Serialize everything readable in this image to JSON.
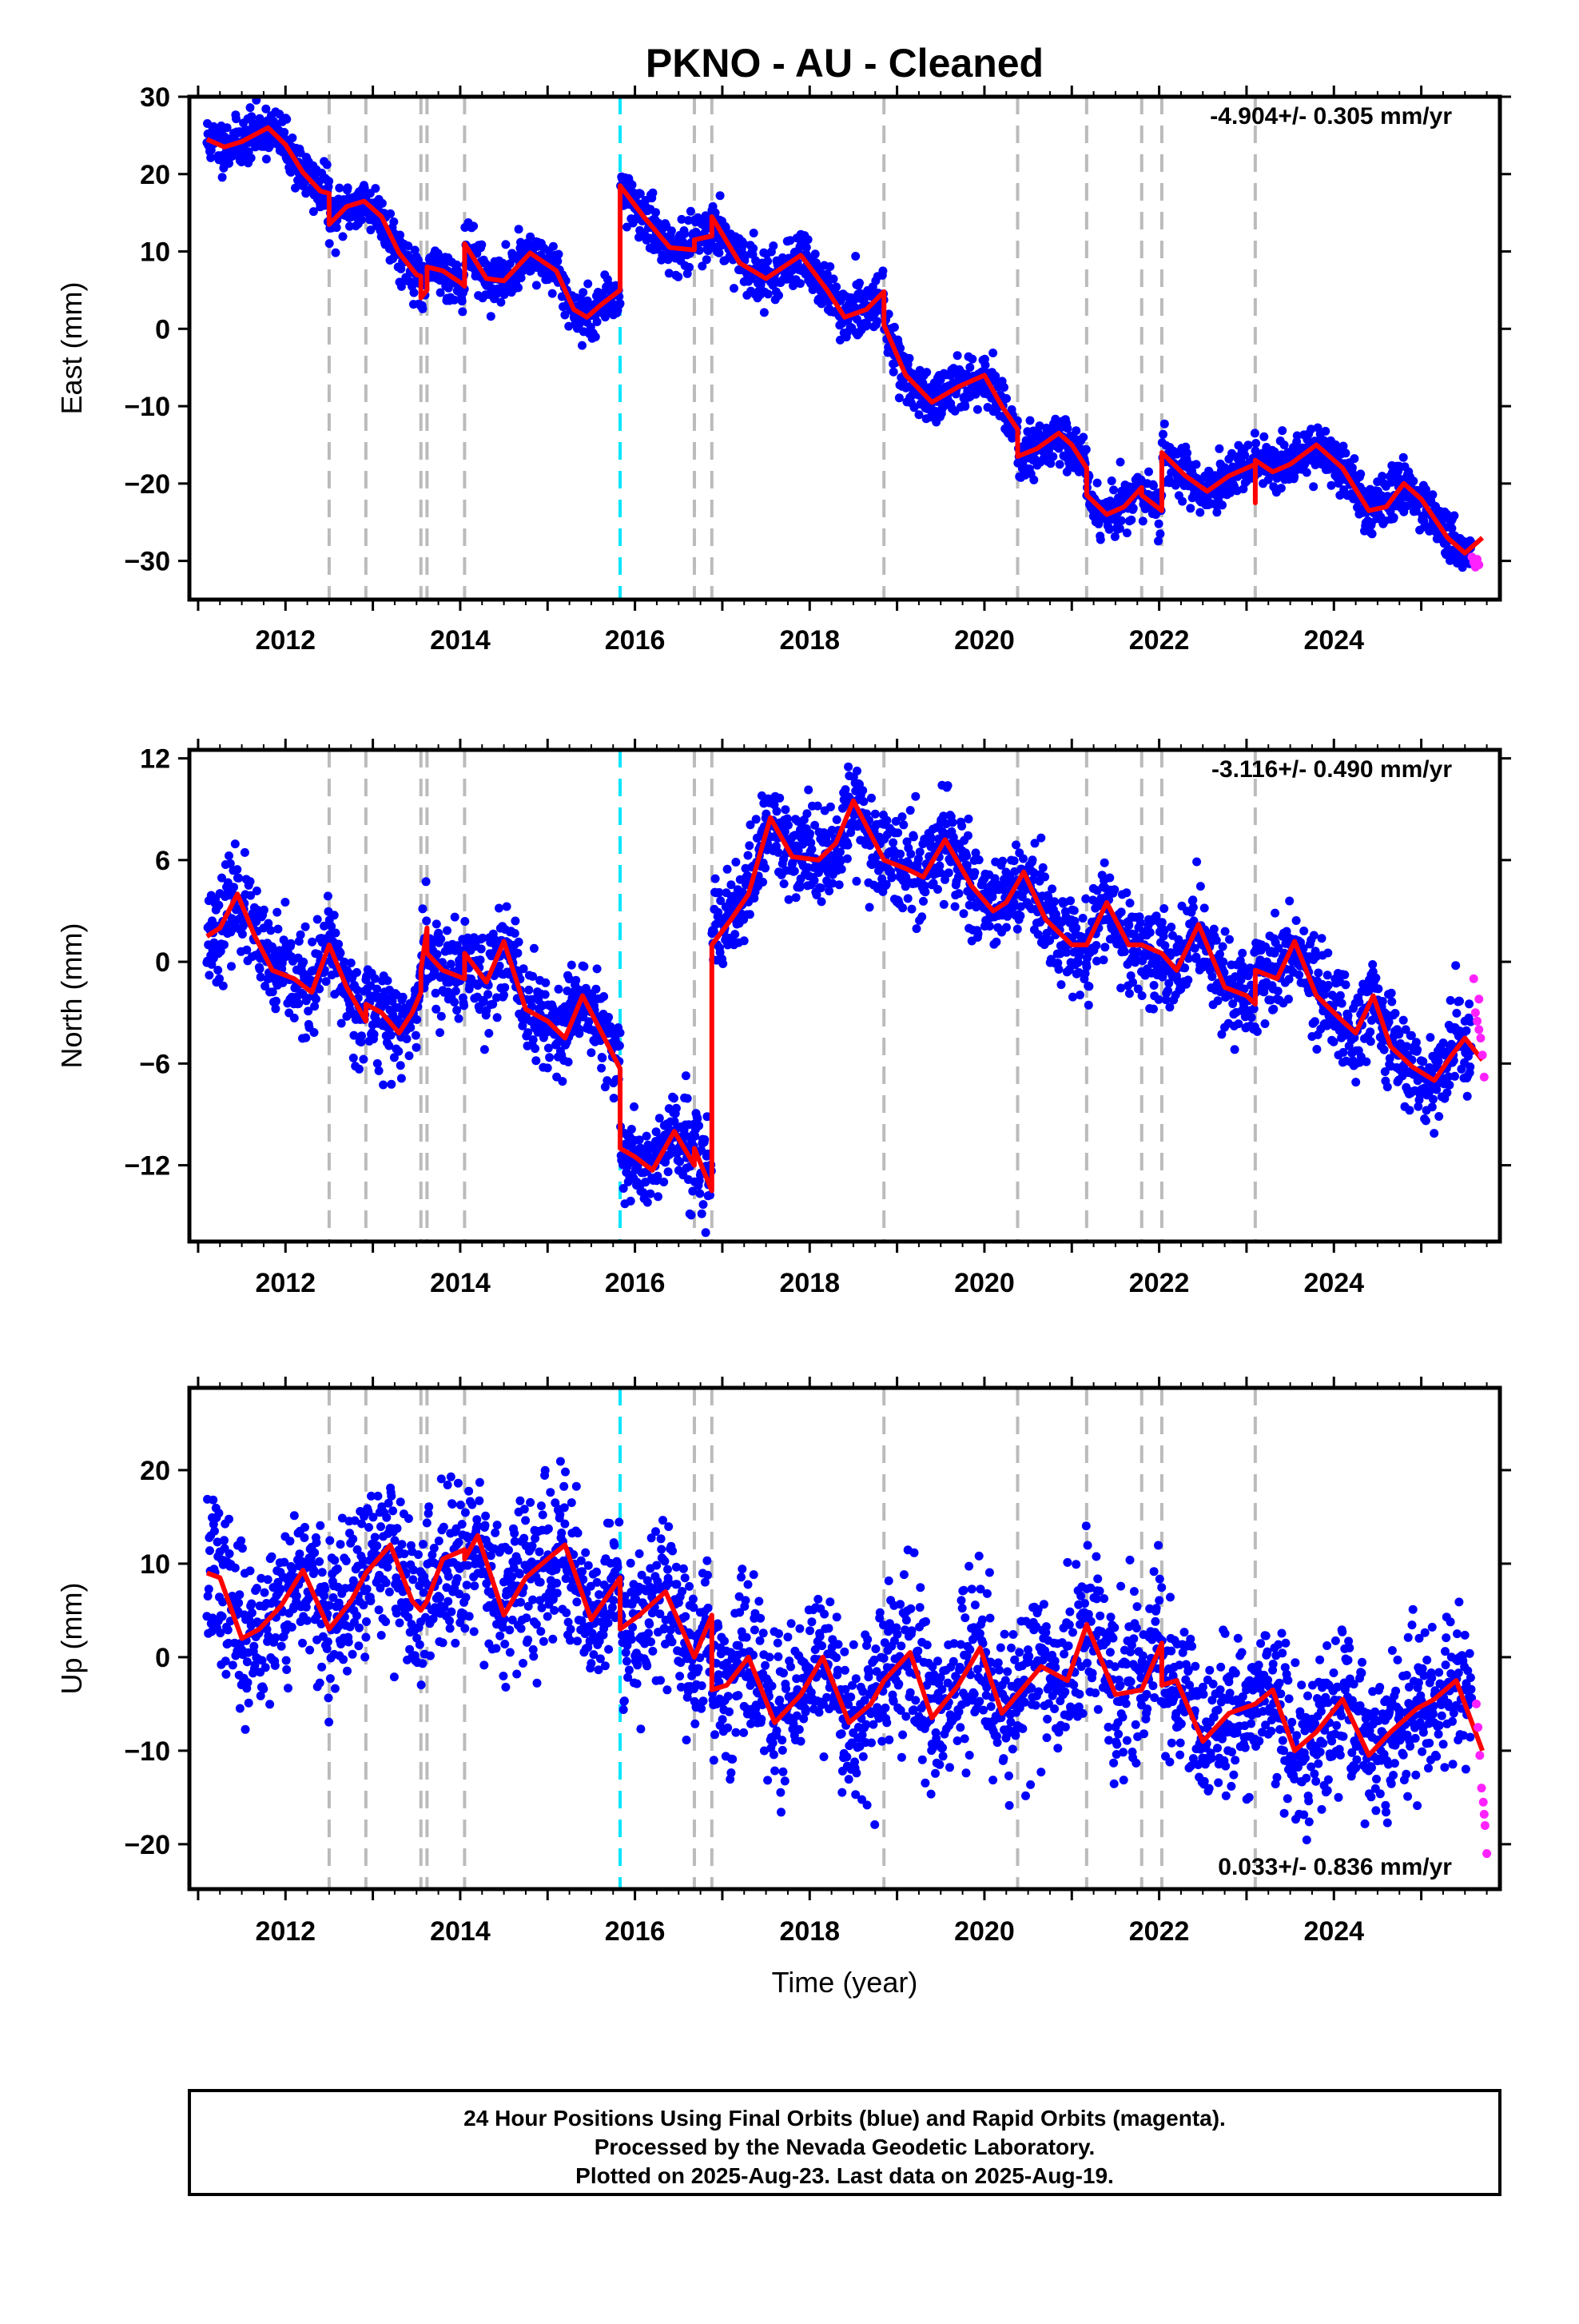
{
  "title": "PKNO  - AU - Cleaned",
  "xlabel": "Time (year)",
  "footer": [
    "24 Hour Positions Using Final Orbits (blue) and Rapid Orbits (magenta).",
    "Processed by the Nevada Geodetic Laboratory.",
    "Plotted on 2025-Aug-23. Last data on 2025-Aug-19."
  ],
  "colors": {
    "final_orbits": "#0000ff",
    "rapid_orbits": "#ff22ff",
    "model": "#ff0000",
    "event_lines": "#bbbbbb",
    "highlight_event": "#00e5ff"
  },
  "chart_data": [
    {
      "type": "scatter",
      "panel": "east",
      "ylabel": "East (mm)",
      "rate_label": "-4.904+/- 0.305 mm/yr",
      "xlim": [
        2010.9,
        2025.9
      ],
      "ylim": [
        -35,
        30
      ],
      "yticks": [
        30,
        20,
        10,
        0,
        -10,
        -20,
        -30
      ],
      "xticks": [
        2012,
        2014,
        2016,
        2018,
        2020,
        2022,
        2024
      ],
      "event_lines": [
        2012.5,
        2012.92,
        2013.55,
        2013.62,
        2014.05,
        2016.68,
        2016.88,
        2018.85,
        2020.38,
        2021.17,
        2021.8,
        2022.03,
        2023.1
      ],
      "highlight_event": 2015.83,
      "model_line": [
        [
          2011.1,
          24.5
        ],
        [
          2011.3,
          23.5
        ],
        [
          2011.5,
          24.2
        ],
        [
          2011.8,
          26
        ],
        [
          2012.0,
          23.8
        ],
        [
          2012.2,
          20.2
        ],
        [
          2012.4,
          17.8
        ],
        [
          2012.5,
          17.5
        ],
        [
          2012.5,
          13.5
        ],
        [
          2012.7,
          15.8
        ],
        [
          2012.9,
          16.5
        ],
        [
          2013.1,
          14.5
        ],
        [
          2013.3,
          9.8
        ],
        [
          2013.5,
          7
        ],
        [
          2013.55,
          6.8
        ],
        [
          2013.55,
          4
        ],
        [
          2013.62,
          5
        ],
        [
          2013.62,
          8
        ],
        [
          2013.8,
          7.5
        ],
        [
          2014.0,
          6
        ],
        [
          2014.05,
          5.5
        ],
        [
          2014.05,
          11
        ],
        [
          2014.3,
          6.5
        ],
        [
          2014.5,
          6.2
        ],
        [
          2014.8,
          9.8
        ],
        [
          2015.1,
          7.5
        ],
        [
          2015.3,
          2.5
        ],
        [
          2015.45,
          1.5
        ],
        [
          2015.6,
          3
        ],
        [
          2015.83,
          5
        ],
        [
          2015.83,
          18.5
        ],
        [
          2016.1,
          14.5
        ],
        [
          2016.4,
          10.5
        ],
        [
          2016.68,
          10.2
        ],
        [
          2016.68,
          11.5
        ],
        [
          2016.88,
          12
        ],
        [
          2016.88,
          14.5
        ],
        [
          2017.2,
          8.5
        ],
        [
          2017.5,
          6.5
        ],
        [
          2017.9,
          9.5
        ],
        [
          2018.2,
          5
        ],
        [
          2018.4,
          1.5
        ],
        [
          2018.65,
          2.5
        ],
        [
          2018.85,
          4.8
        ],
        [
          2018.85,
          0.5
        ],
        [
          2019.1,
          -6
        ],
        [
          2019.4,
          -9.5
        ],
        [
          2019.7,
          -7.5
        ],
        [
          2020.0,
          -6
        ],
        [
          2020.2,
          -10
        ],
        [
          2020.38,
          -13
        ],
        [
          2020.38,
          -16.5
        ],
        [
          2020.6,
          -15.5
        ],
        [
          2020.85,
          -13.5
        ],
        [
          2021.0,
          -15
        ],
        [
          2021.17,
          -18
        ],
        [
          2021.17,
          -21.5
        ],
        [
          2021.4,
          -24
        ],
        [
          2021.6,
          -23
        ],
        [
          2021.8,
          -20.5
        ],
        [
          2021.8,
          -21.5
        ],
        [
          2022.03,
          -23.5
        ],
        [
          2022.03,
          -16
        ],
        [
          2022.3,
          -19
        ],
        [
          2022.55,
          -21
        ],
        [
          2022.8,
          -19
        ],
        [
          2023.1,
          -17.5
        ],
        [
          2023.1,
          -22.5
        ],
        [
          2023.1,
          -17
        ],
        [
          2023.3,
          -18.5
        ],
        [
          2023.5,
          -17.5
        ],
        [
          2023.8,
          -15
        ],
        [
          2024.1,
          -18
        ],
        [
          2024.4,
          -23.5
        ],
        [
          2024.6,
          -23
        ],
        [
          2024.8,
          -20
        ],
        [
          2025.0,
          -22
        ],
        [
          2025.3,
          -27
        ],
        [
          2025.5,
          -29
        ],
        [
          2025.7,
          -27
        ]
      ],
      "rapid_points": [
        [
          2025.58,
          -29.5
        ],
        [
          2025.6,
          -30.2
        ],
        [
          2025.62,
          -30.8
        ],
        [
          2025.64,
          -29.8
        ],
        [
          2025.66,
          -30.5
        ]
      ]
    },
    {
      "type": "scatter",
      "panel": "north",
      "ylabel": "North (mm)",
      "rate_label": "-3.116+/- 0.490 mm/yr",
      "xlim": [
        2010.9,
        2025.9
      ],
      "ylim": [
        -16.5,
        12.5
      ],
      "yticks": [
        12,
        6,
        0,
        -6,
        -12
      ],
      "xticks": [
        2012,
        2014,
        2016,
        2018,
        2020,
        2022,
        2024
      ],
      "event_lines": [
        2012.5,
        2012.92,
        2013.55,
        2013.62,
        2014.05,
        2016.68,
        2016.88,
        2018.85,
        2020.38,
        2021.17,
        2021.8,
        2022.03,
        2023.1
      ],
      "highlight_event": 2015.83,
      "model_line": [
        [
          2011.1,
          1.5
        ],
        [
          2011.25,
          2
        ],
        [
          2011.45,
          4
        ],
        [
          2011.65,
          1.5
        ],
        [
          2011.85,
          -0.5
        ],
        [
          2012.1,
          -1
        ],
        [
          2012.3,
          -1.8
        ],
        [
          2012.5,
          1
        ],
        [
          2012.7,
          -1.5
        ],
        [
          2012.92,
          -3.5
        ],
        [
          2012.92,
          -2.5
        ],
        [
          2013.1,
          -3
        ],
        [
          2013.3,
          -4.2
        ],
        [
          2013.45,
          -3
        ],
        [
          2013.55,
          -1.8
        ],
        [
          2013.55,
          -0.5
        ],
        [
          2013.62,
          2
        ],
        [
          2013.62,
          0.5
        ],
        [
          2013.8,
          -0.5
        ],
        [
          2014.05,
          -1
        ],
        [
          2014.05,
          0.5
        ],
        [
          2014.3,
          -1.2
        ],
        [
          2014.5,
          1.2
        ],
        [
          2014.75,
          -2.8
        ],
        [
          2015.0,
          -3.5
        ],
        [
          2015.2,
          -4.5
        ],
        [
          2015.4,
          -2
        ],
        [
          2015.6,
          -4
        ],
        [
          2015.8,
          -6
        ],
        [
          2015.83,
          -6.3
        ],
        [
          2015.83,
          -11
        ],
        [
          2016.0,
          -11.5
        ],
        [
          2016.2,
          -12.3
        ],
        [
          2016.45,
          -10
        ],
        [
          2016.68,
          -12
        ],
        [
          2016.68,
          -11
        ],
        [
          2016.88,
          -13.5
        ],
        [
          2016.88,
          1
        ],
        [
          2017.1,
          2.5
        ],
        [
          2017.3,
          4
        ],
        [
          2017.55,
          8.5
        ],
        [
          2017.8,
          6.2
        ],
        [
          2018.1,
          6
        ],
        [
          2018.3,
          7
        ],
        [
          2018.5,
          9.5
        ],
        [
          2018.85,
          6
        ],
        [
          2019.1,
          5.5
        ],
        [
          2019.3,
          5
        ],
        [
          2019.55,
          7.2
        ],
        [
          2019.85,
          4.5
        ],
        [
          2020.1,
          3
        ],
        [
          2020.25,
          3.5
        ],
        [
          2020.45,
          5.3
        ],
        [
          2020.7,
          2.5
        ],
        [
          2021.0,
          1
        ],
        [
          2021.17,
          1
        ],
        [
          2021.4,
          3.5
        ],
        [
          2021.65,
          1
        ],
        [
          2021.8,
          1
        ],
        [
          2022.03,
          0.5
        ],
        [
          2022.2,
          -0.5
        ],
        [
          2022.45,
          2.2
        ],
        [
          2022.75,
          -1.5
        ],
        [
          2023.0,
          -2
        ],
        [
          2023.1,
          -2.5
        ],
        [
          2023.1,
          -0.5
        ],
        [
          2023.35,
          -1
        ],
        [
          2023.55,
          1.2
        ],
        [
          2023.8,
          -2
        ],
        [
          2024.1,
          -3.5
        ],
        [
          2024.25,
          -4.2
        ],
        [
          2024.45,
          -2
        ],
        [
          2024.65,
          -5
        ],
        [
          2024.9,
          -6.2
        ],
        [
          2025.15,
          -7
        ],
        [
          2025.35,
          -5.5
        ],
        [
          2025.5,
          -4.5
        ],
        [
          2025.7,
          -5.8
        ]
      ],
      "rapid_points": [
        [
          2025.6,
          -1
        ],
        [
          2025.62,
          -3
        ],
        [
          2025.64,
          -3.5
        ],
        [
          2025.66,
          -4
        ],
        [
          2025.68,
          -4.5
        ],
        [
          2025.7,
          -5.5
        ],
        [
          2025.72,
          -6.8
        ],
        [
          2025.66,
          -2.2
        ]
      ]
    },
    {
      "type": "scatter",
      "panel": "up",
      "ylabel": "Up (mm)",
      "rate_label": "0.033+/- 0.836 mm/yr",
      "xlim": [
        2010.9,
        2025.9
      ],
      "ylim": [
        -24.8,
        28.8
      ],
      "yticks": [
        20,
        10,
        0,
        -10,
        -20
      ],
      "xticks": [
        2012,
        2014,
        2016,
        2018,
        2020,
        2022,
        2024
      ],
      "event_lines": [
        2012.5,
        2012.92,
        2013.55,
        2013.62,
        2014.05,
        2016.68,
        2016.88,
        2018.85,
        2020.38,
        2021.17,
        2021.8,
        2022.03,
        2023.1
      ],
      "highlight_event": 2015.83,
      "model_line": [
        [
          2011.1,
          9
        ],
        [
          2011.25,
          8.5
        ],
        [
          2011.5,
          2
        ],
        [
          2011.7,
          3
        ],
        [
          2011.95,
          5.5
        ],
        [
          2012.2,
          9.3
        ],
        [
          2012.5,
          3
        ],
        [
          2012.75,
          6
        ],
        [
          2012.92,
          9
        ],
        [
          2013.2,
          12
        ],
        [
          2013.45,
          6
        ],
        [
          2013.55,
          5
        ],
        [
          2013.62,
          6
        ],
        [
          2013.8,
          10.5
        ],
        [
          2014.05,
          11.5
        ],
        [
          2014.05,
          10.5
        ],
        [
          2014.2,
          13
        ],
        [
          2014.5,
          4.5
        ],
        [
          2014.75,
          8.5
        ],
        [
          2015.0,
          10.5
        ],
        [
          2015.2,
          12
        ],
        [
          2015.5,
          4
        ],
        [
          2015.83,
          8.5
        ],
        [
          2015.83,
          3
        ],
        [
          2016.05,
          4.5
        ],
        [
          2016.35,
          7
        ],
        [
          2016.68,
          0
        ],
        [
          2016.88,
          4.5
        ],
        [
          2016.88,
          -3.5
        ],
        [
          2017.05,
          -3
        ],
        [
          2017.3,
          0
        ],
        [
          2017.6,
          -7
        ],
        [
          2017.9,
          -4
        ],
        [
          2018.15,
          0
        ],
        [
          2018.45,
          -7
        ],
        [
          2018.7,
          -5
        ],
        [
          2018.85,
          -2.5
        ],
        [
          2019.15,
          0.5
        ],
        [
          2019.4,
          -6.5
        ],
        [
          2019.7,
          -3
        ],
        [
          2019.95,
          1
        ],
        [
          2020.2,
          -6
        ],
        [
          2020.38,
          -4
        ],
        [
          2020.65,
          -1
        ],
        [
          2020.95,
          -2.5
        ],
        [
          2021.17,
          3.5
        ],
        [
          2021.5,
          -4
        ],
        [
          2021.8,
          -3.5
        ],
        [
          2022.03,
          1.5
        ],
        [
          2022.03,
          -3
        ],
        [
          2022.2,
          -2.5
        ],
        [
          2022.5,
          -9
        ],
        [
          2022.8,
          -6
        ],
        [
          2023.1,
          -5
        ],
        [
          2023.3,
          -3.5
        ],
        [
          2023.55,
          -10
        ],
        [
          2023.8,
          -8
        ],
        [
          2024.1,
          -4.5
        ],
        [
          2024.4,
          -10.5
        ],
        [
          2024.65,
          -8
        ],
        [
          2024.95,
          -5.5
        ],
        [
          2025.15,
          -4.5
        ],
        [
          2025.4,
          -2.5
        ],
        [
          2025.7,
          -10
        ]
      ],
      "rapid_points": [
        [
          2025.63,
          -5
        ],
        [
          2025.65,
          -7.5
        ],
        [
          2025.67,
          -10.5
        ],
        [
          2025.69,
          -14
        ],
        [
          2025.71,
          -15.5
        ],
        [
          2025.72,
          -16.8
        ],
        [
          2025.73,
          -18
        ],
        [
          2025.75,
          -21
        ]
      ]
    }
  ]
}
